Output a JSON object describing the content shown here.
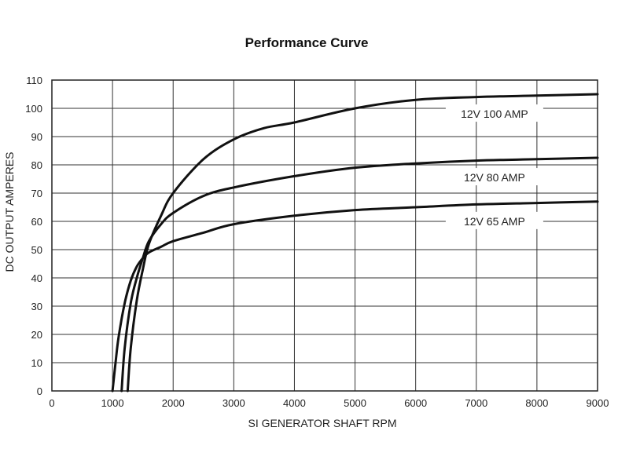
{
  "chart_data": {
    "type": "line",
    "title": "Performance Curve",
    "xlabel": "SI GENERATOR SHAFT RPM",
    "ylabel": "DC OUTPUT AMPERES",
    "xlim": [
      0,
      9000
    ],
    "ylim": [
      0,
      110
    ],
    "x_ticks": [
      0,
      1000,
      2000,
      3000,
      4000,
      5000,
      6000,
      7000,
      8000,
      9000
    ],
    "y_ticks": [
      0,
      10,
      20,
      30,
      40,
      50,
      60,
      70,
      80,
      90,
      100,
      110
    ],
    "grid": true,
    "legend": "inline labels at right",
    "series": [
      {
        "name": "12V 100 AMP",
        "x": [
          1250,
          1300,
          1400,
          1500,
          1600,
          1800,
          2000,
          2500,
          3000,
          3500,
          4000,
          5000,
          6000,
          7000,
          8000,
          9000
        ],
        "y": [
          0,
          15,
          32,
          43,
          52,
          62,
          70,
          82,
          89,
          93,
          95,
          100,
          103,
          104,
          104.5,
          105
        ]
      },
      {
        "name": "12V 80 AMP",
        "x": [
          1150,
          1200,
          1300,
          1400,
          1500,
          1600,
          1800,
          2000,
          2500,
          3000,
          4000,
          5000,
          6000,
          7000,
          8000,
          9000
        ],
        "y": [
          0,
          15,
          31,
          40,
          47,
          53,
          59,
          63,
          69,
          72,
          76,
          79,
          80.5,
          81.5,
          82,
          82.5
        ]
      },
      {
        "name": "12V 65 AMP",
        "x": [
          1000,
          1050,
          1100,
          1200,
          1300,
          1400,
          1500,
          1600,
          1800,
          2000,
          2500,
          3000,
          4000,
          5000,
          6000,
          7000,
          8000,
          9000
        ],
        "y": [
          0,
          10,
          19,
          31,
          39,
          44,
          47,
          49,
          51,
          53,
          56,
          59,
          62,
          64,
          65,
          66,
          66.5,
          67
        ]
      }
    ]
  }
}
